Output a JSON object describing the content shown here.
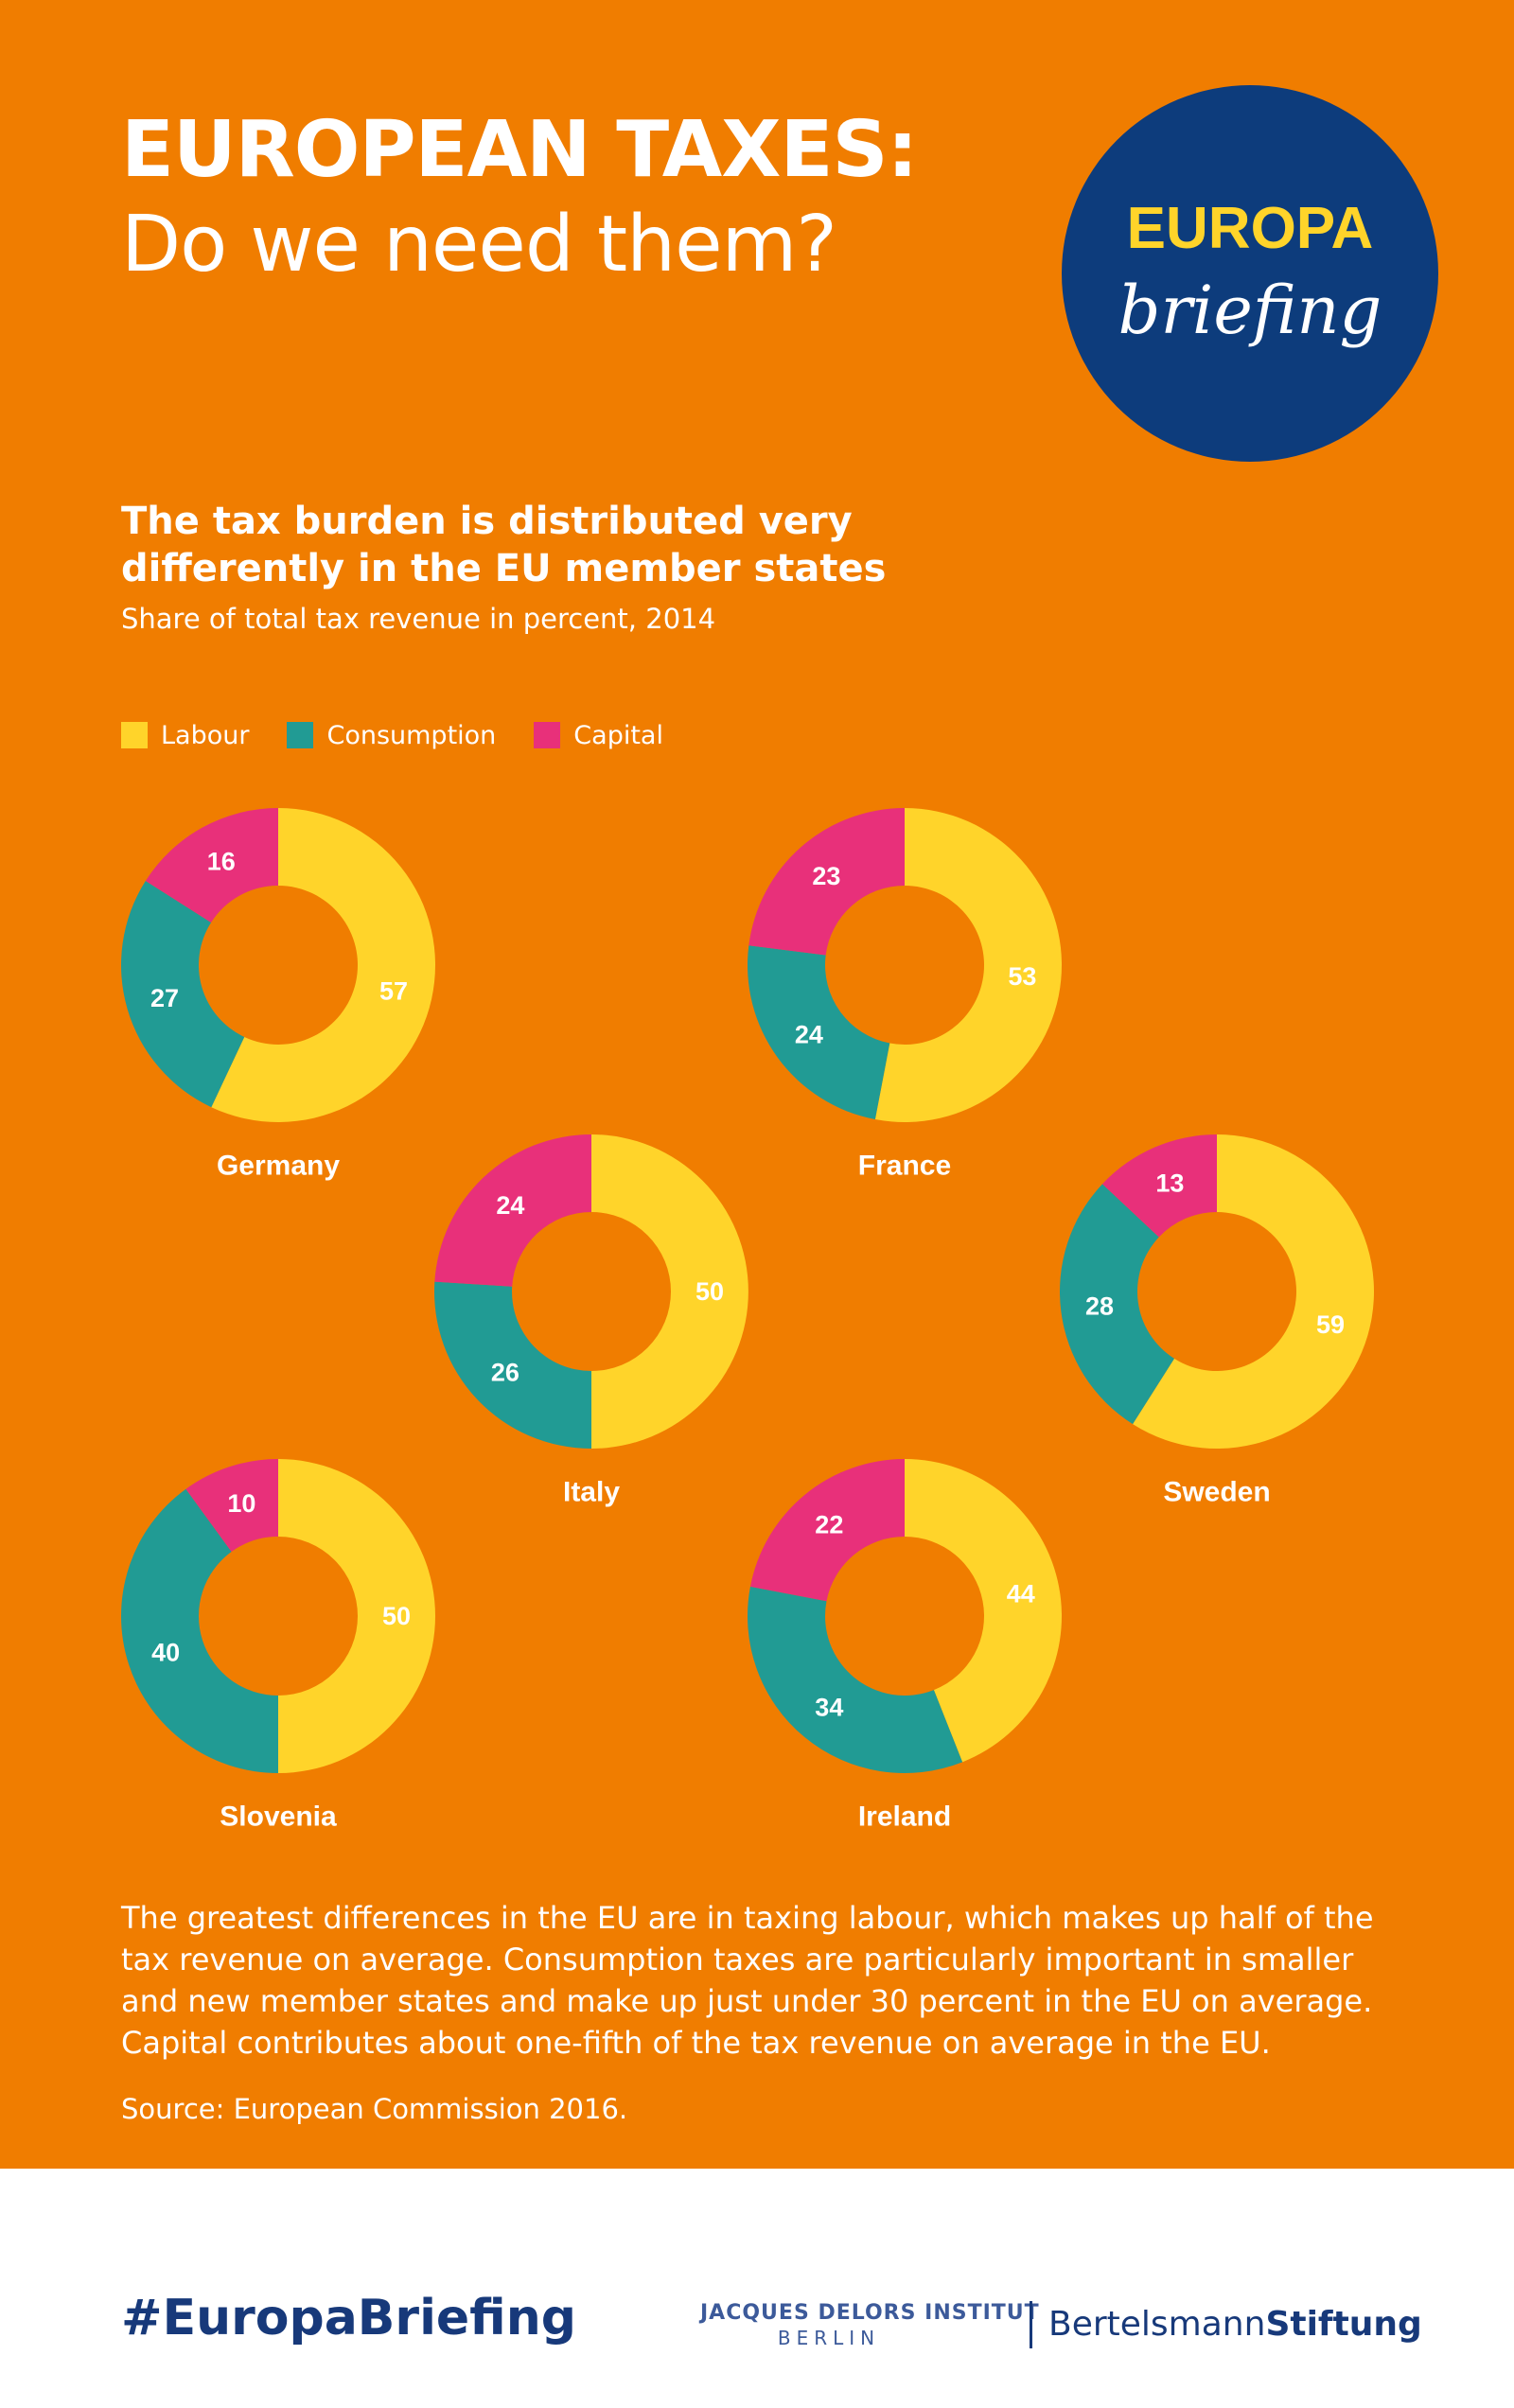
{
  "header": {
    "title": "EUROPEAN TAXES:",
    "subtitle": "Do we need them?"
  },
  "logo": {
    "word1": "EUROPA",
    "word2": "briefing",
    "circle_color": "#0D3C7C",
    "word1_color": "#FFD42A"
  },
  "chart_title": "The tax burden is distributed very differently in the EU member states",
  "chart_subtitle": "Share of total tax revenue in percent, 2014",
  "legend": [
    {
      "label": "Labour",
      "color": "#FFD42A"
    },
    {
      "label": "Consumption",
      "color": "#219B94"
    },
    {
      "label": "Capital",
      "color": "#E8307A"
    }
  ],
  "chart_data": [
    {
      "type": "pie",
      "title": "Germany",
      "categories": [
        "Labour",
        "Consumption",
        "Capital"
      ],
      "values": [
        57,
        27,
        16
      ]
    },
    {
      "type": "pie",
      "title": "France",
      "categories": [
        "Labour",
        "Consumption",
        "Capital"
      ],
      "values": [
        53,
        24,
        23
      ]
    },
    {
      "type": "pie",
      "title": "Italy",
      "categories": [
        "Labour",
        "Consumption",
        "Capital"
      ],
      "values": [
        50,
        26,
        24
      ]
    },
    {
      "type": "pie",
      "title": "Sweden",
      "categories": [
        "Labour",
        "Consumption",
        "Capital"
      ],
      "values": [
        59,
        28,
        13
      ]
    },
    {
      "type": "pie",
      "title": "Slovenia",
      "categories": [
        "Labour",
        "Consumption",
        "Capital"
      ],
      "values": [
        50,
        40,
        10
      ]
    },
    {
      "type": "pie",
      "title": "Ireland",
      "categories": [
        "Labour",
        "Consumption",
        "Capital"
      ],
      "values": [
        44,
        34,
        22
      ]
    }
  ],
  "description": "The greatest differences in the EU are in taxing labour, which makes up half of the tax revenue on average. Consumption taxes are particularly important in smaller and new member states and make up just under 30 percent in the EU on average. Capital contributes about one-fifth of the tax revenue on average in the EU.",
  "source": "Source: European Commission 2016.",
  "footer": {
    "hashtag": "#EuropaBriefing",
    "jdi_name": "JACQUES DELORS INSTITUT",
    "jdi_city": "BERLIN",
    "bs_part1": "Bertelsmann",
    "bs_part2": "Stiftung"
  }
}
